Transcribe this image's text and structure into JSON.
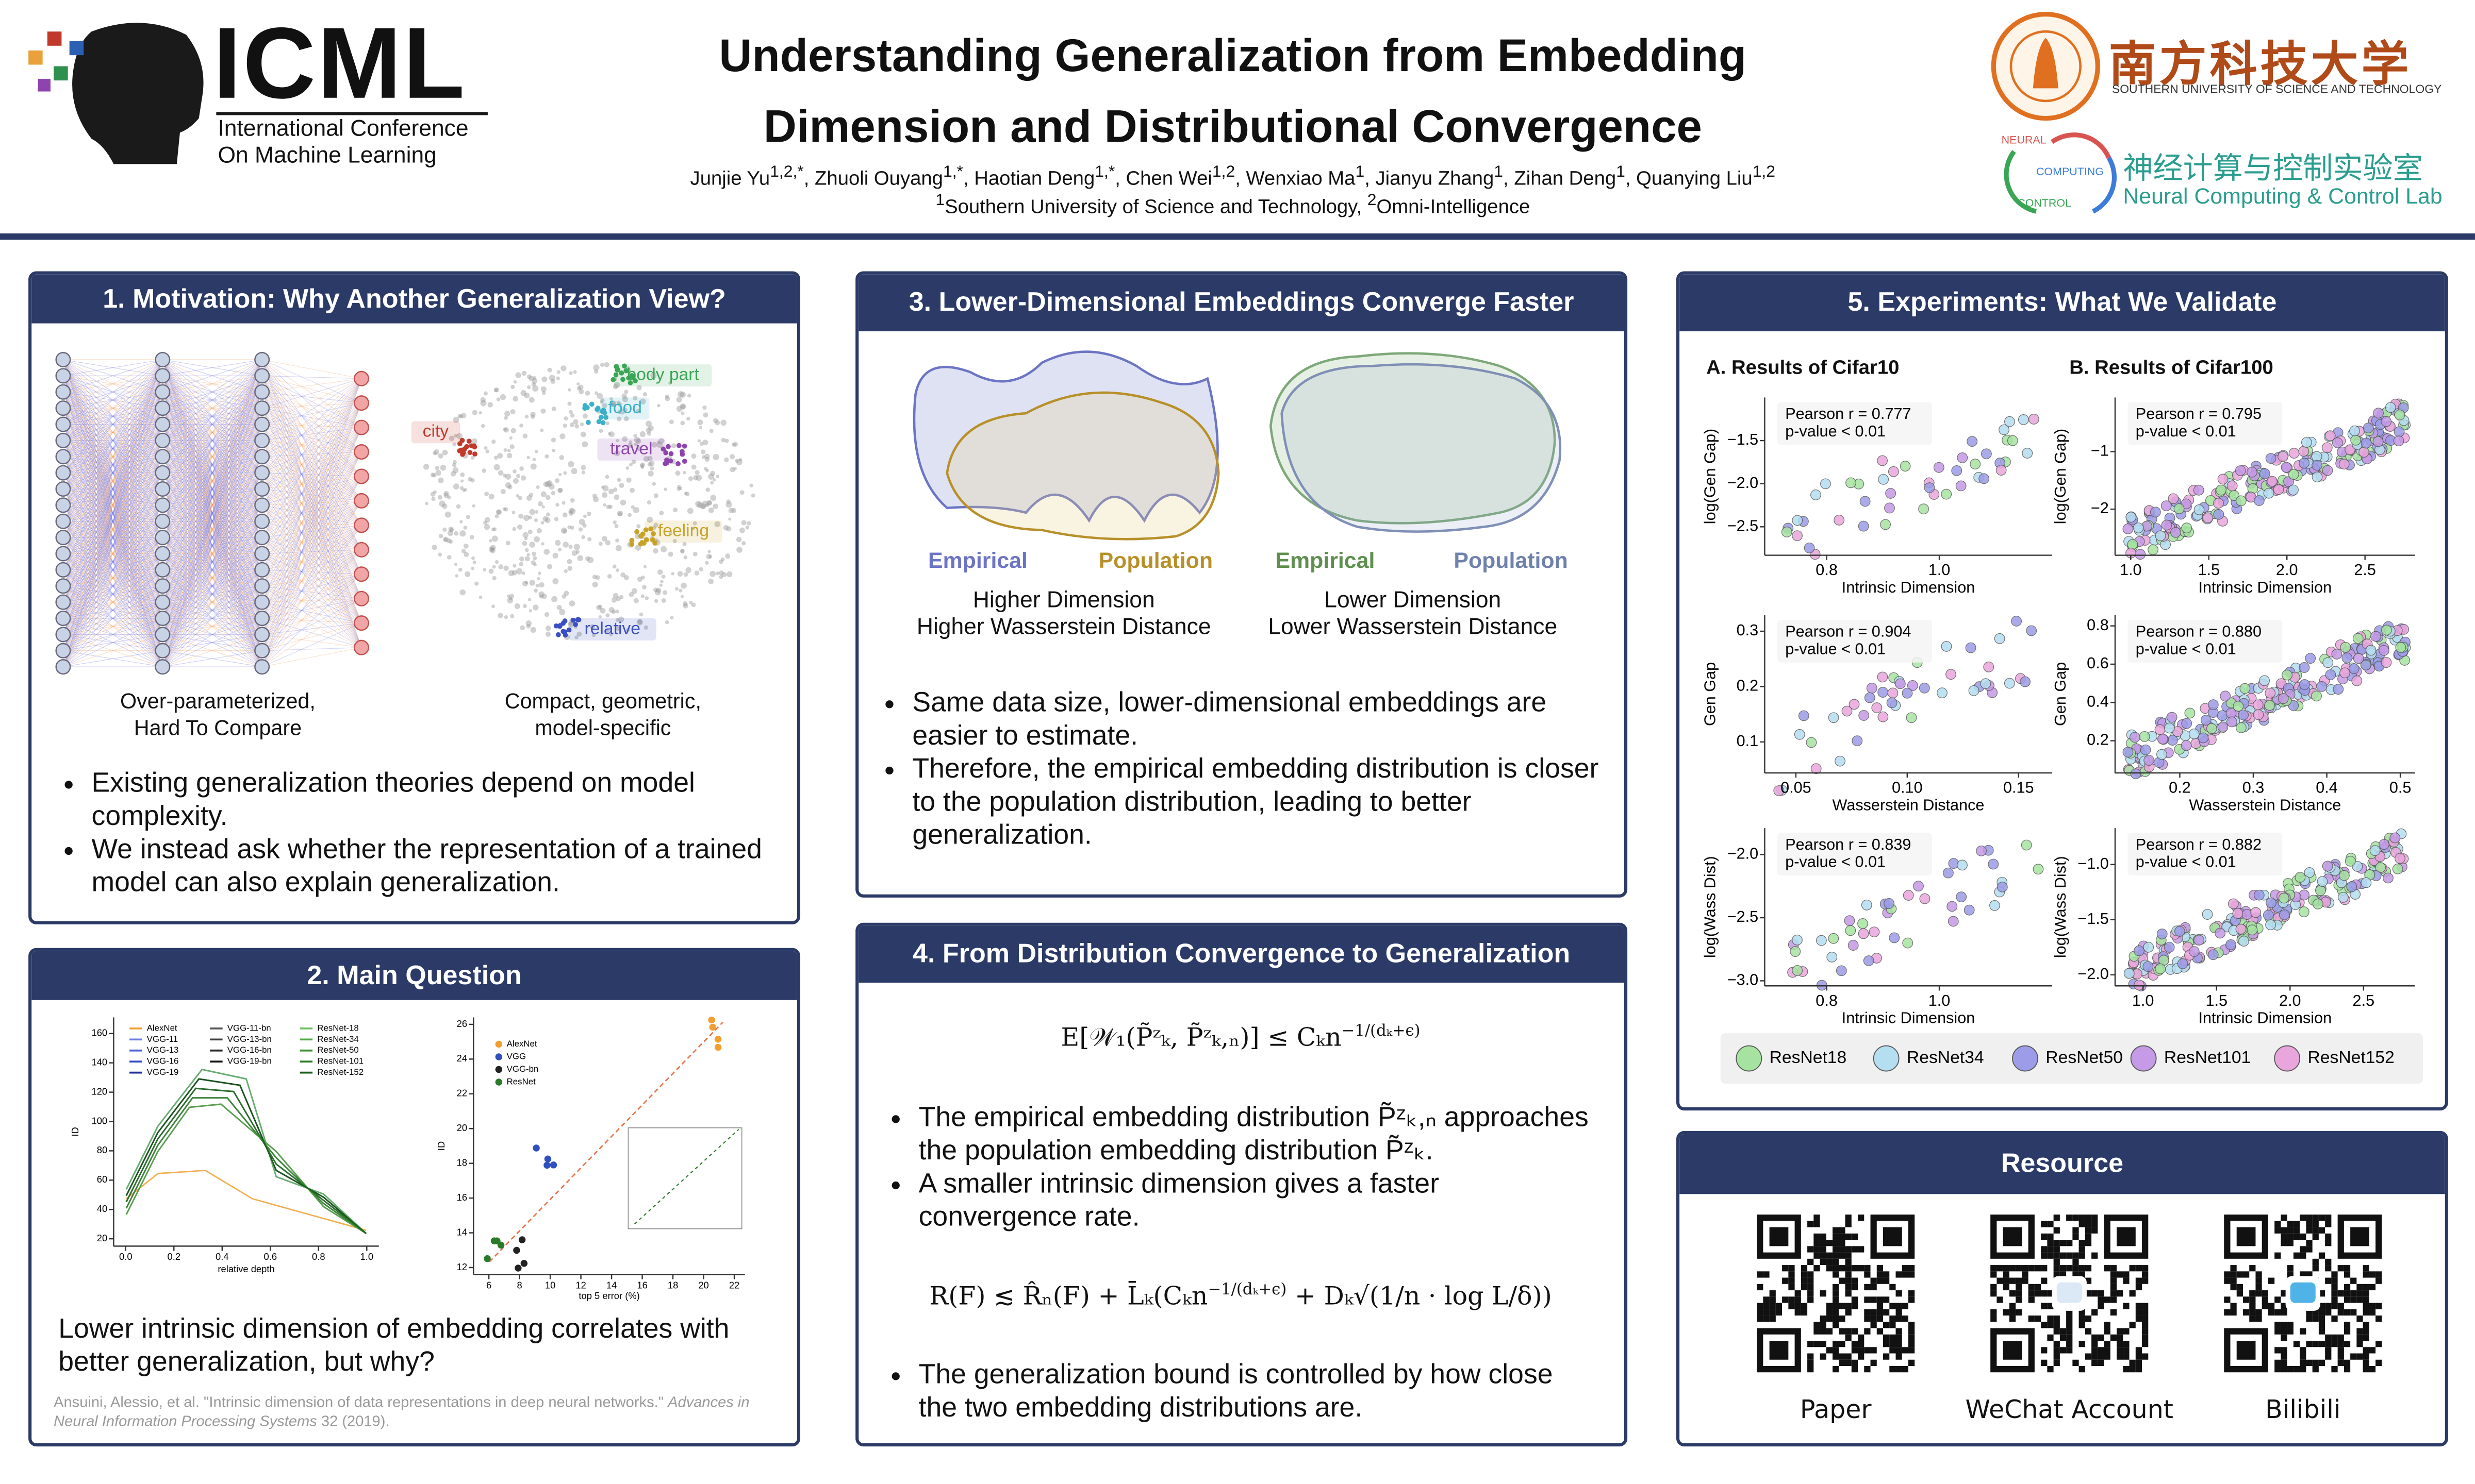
{
  "header": {
    "conference": {
      "acronym": "ICML",
      "line1": "International Conference",
      "line2": "On Machine Learning"
    },
    "title": [
      "Understanding Generalization from Embedding",
      "Dimension and Distributional Convergence"
    ],
    "separator": ", ",
    "authors": [
      {
        "name": "Junjie Yu",
        "sup": "1,2,*"
      },
      {
        "name": "Zhuoli Ouyang",
        "sup": "1,*"
      },
      {
        "name": "Haotian Deng",
        "sup": "1,*"
      },
      {
        "name": "Chen Wei",
        "sup": "1,2"
      },
      {
        "name": "Wenxiao Ma",
        "sup": "1"
      },
      {
        "name": "Jianyu Zhang",
        "sup": "1"
      },
      {
        "name": "Zihan Deng",
        "sup": "1"
      },
      {
        "name": "Quanying Liu",
        "sup": "1,2"
      }
    ],
    "affiliations": [
      {
        "sup": "1",
        "name": "Southern University of Science and Technology"
      },
      {
        "sup": "2",
        "name": "Omni-Intelligence"
      }
    ],
    "university": {
      "chinese": "南方科技大学",
      "english": "SOUTHERN UNIVERSITY OF SCIENCE AND TECHNOLOGY"
    },
    "lab": {
      "logo_words": [
        "NEURAL",
        "COMPUTING",
        "CONTROL"
      ],
      "chinese": "神经计算与控制实验室",
      "english": "Neural Computing & Control Lab"
    }
  },
  "motivation": {
    "title": "1. Motivation: Why Another Generalization View?",
    "network_caption": [
      "Over-parameterized,",
      "Hard To Compare"
    ],
    "embedding_caption": [
      "Compact, geometric,",
      "model-specific"
    ],
    "clusters": [
      "body part",
      "food",
      "city",
      "travel",
      "feeling",
      "relative"
    ],
    "bullets": [
      "Existing generalization theories depend on model complexity.",
      "We instead ask whether the representation of a trained model can also explain generalization."
    ]
  },
  "main_question": {
    "title": "2. Main Question",
    "id_chart": {
      "y_label": "ID",
      "x_label": "relative depth",
      "xlim": [
        -0.05,
        1.05
      ],
      "ylim": [
        15,
        171
      ],
      "xticks": [
        {
          "value": 0,
          "label": "0.0"
        },
        0.2,
        0.4,
        0.6,
        0.8,
        {
          "value": 1,
          "label": "1.0"
        }
      ],
      "yticks": [
        20,
        40,
        60,
        80,
        100,
        120,
        140,
        160
      ],
      "legend": [
        {
          "name": "AlexNet",
          "color": "#f0a030"
        },
        {
          "name": "VGG-11",
          "color": "#6a7ee6"
        },
        {
          "name": "VGG-13",
          "color": "#4d62d8"
        },
        {
          "name": "VGG-16",
          "color": "#3049c4"
        },
        {
          "name": "VGG-19",
          "color": "#1c2f9c"
        },
        {
          "name": "VGG-11-bn",
          "color": "#555555"
        },
        {
          "name": "VGG-13-bn",
          "color": "#3d3d3d"
        },
        {
          "name": "VGG-16-bn",
          "color": "#262626"
        },
        {
          "name": "VGG-19-bn",
          "color": "#111111"
        },
        {
          "name": "ResNet-18",
          "color": "#6fbf5f"
        },
        {
          "name": "ResNet-34",
          "color": "#52a845"
        },
        {
          "name": "ResNet-50",
          "color": "#3a9030"
        },
        {
          "name": "ResNet-101",
          "color": "#2a7a24"
        },
        {
          "name": "ResNet-152",
          "color": "#1a5e18"
        }
      ]
    },
    "error_chart": {
      "y_label": "ID",
      "x_label": "top 5 error (%)",
      "xlim": [
        5,
        22.7
      ],
      "ylim": [
        11.6,
        26.4
      ],
      "xticks": [
        6,
        8,
        10,
        12,
        14,
        16,
        18,
        20,
        22
      ],
      "yticks": [
        12,
        14,
        16,
        18,
        20,
        22,
        24,
        26
      ],
      "legend": [
        {
          "name": "AlexNet",
          "color": "#f0a030"
        },
        {
          "name": "VGG",
          "color": "#3050c0"
        },
        {
          "name": "VGG-bn",
          "color": "#222222"
        },
        {
          "name": "ResNet",
          "color": "#2a7a2a"
        }
      ]
    },
    "caption": "Lower intrinsic dimension of embedding correlates with better generalization, but why?",
    "citation": {
      "authors": "Ansuini, Alessio, et al. \"Intrinsic dimension of data representations in deep neural networks.\"",
      "venue": "Advances in Neural Information Processing Systems",
      "details": "32 (2019)."
    }
  },
  "convergence": {
    "title": "3. Lower-Dimensional Embeddings Converge Faster",
    "high": {
      "labels": [
        "Empirical",
        "Population"
      ],
      "caption": [
        "Higher Dimension",
        "Higher Wasserstein Distance"
      ]
    },
    "low": {
      "labels": [
        "Empirical",
        "Population"
      ],
      "caption": [
        "Lower Dimension",
        "Lower Wasserstein Distance"
      ]
    },
    "bullets": [
      "Same data size, lower-dimensional embeddings are easier to estimate.",
      "Therefore, the empirical embedding distribution is closer to the population distribution, leading to better generalization."
    ]
  },
  "generalization": {
    "title": "4. From Distribution Convergence to Generalization",
    "rate_bound": [
      {
        "text": "E[𝒲₁(P̃ᶻₖ, P̃ᶻₖ,ₙ)] ≤ Cₖn"
      },
      {
        "text": "−1/(dₖ+ϵ)",
        "sup": true
      }
    ],
    "bullets_top": [
      "The empirical embedding distribution P̃ᶻₖ,ₙ approaches the population embedding distribution P̃ᶻₖ.",
      "A smaller intrinsic dimension gives a faster convergence rate."
    ],
    "risk_bound": [
      {
        "text": "R(F) ≲ R̂ₙ(F) + L̄ₖ(Cₖn"
      },
      {
        "text": "−1/(dₖ+ϵ)",
        "sup": true
      },
      {
        "text": " + Dₖ√(1/n · log L/δ))"
      }
    ],
    "bullets_bottom": [
      "The generalization bound is controlled by how close the two embedding distributions are."
    ]
  },
  "experiments": {
    "title": "5. Experiments: What We Validate",
    "cifar10": {
      "title": "A. Results of Cifar10",
      "plots": [
        {
          "pearson": "Pearson r = 0.777",
          "p_value": "p-value < 0.01",
          "x_label": "Intrinsic Dimension",
          "y_label": "log(Gen Gap)",
          "xlim": [
            0.69,
            1.2
          ],
          "ylim": [
            -2.83,
            -1.0
          ],
          "xticks": [
            0.8,
            {
              "value": 1,
              "label": "1.0"
            }
          ],
          "yticks": [
            {
              "value": -2.5,
              "label": "−2.5"
            },
            {
              "value": -2,
              "label": "−2.0"
            },
            {
              "value": -1.5,
              "label": "−1.5"
            }
          ]
        },
        {
          "pearson": "Pearson r = 0.904",
          "p_value": "p-value < 0.01",
          "x_label": "Wasserstein Distance",
          "y_label": "Gen Gap",
          "xlim": [
            0.036,
            0.165
          ],
          "ylim": [
            0.044,
            0.329
          ],
          "xticks": [
            0.05,
            {
              "value": 0.1,
              "label": "0.10"
            },
            0.15
          ],
          "yticks": [
            0.1,
            0.2,
            0.3
          ]
        },
        {
          "pearson": "Pearson r = 0.839",
          "p_value": "p-value < 0.01",
          "x_label": "Intrinsic Dimension",
          "y_label": "log(Wass Dist)",
          "xlim": [
            0.69,
            1.2
          ],
          "ylim": [
            -3.04,
            -1.79
          ],
          "xticks": [
            0.8,
            {
              "value": 1,
              "label": "1.0"
            }
          ],
          "yticks": [
            {
              "value": -3,
              "label": "−3.0"
            },
            {
              "value": -2.5,
              "label": "−2.5"
            },
            {
              "value": -2,
              "label": "−2.0"
            }
          ]
        }
      ]
    },
    "cifar100": {
      "title": "B. Results of Cifar100",
      "plots": [
        {
          "pearson": "Pearson r = 0.795",
          "p_value": "p-value < 0.01",
          "x_label": "Intrinsic Dimension",
          "y_label": "log(Gen Gap)",
          "xlim": [
            0.9,
            2.82
          ],
          "ylim": [
            -2.8,
            -0.06
          ],
          "xticks": [
            {
              "value": 1,
              "label": "1.0"
            },
            1.5,
            {
              "value": 2,
              "label": "2.0"
            },
            2.5
          ],
          "yticks": [
            {
              "value": -2,
              "label": "−2"
            },
            {
              "value": -1,
              "label": "−1"
            }
          ]
        },
        {
          "pearson": "Pearson r = 0.880",
          "p_value": "p-value < 0.01",
          "x_label": "Wasserstein Distance",
          "y_label": "Gen Gap",
          "xlim": [
            0.112,
            0.52
          ],
          "ylim": [
            0.032,
            0.856
          ],
          "xticks": [
            0.2,
            0.3,
            0.4,
            0.5
          ],
          "yticks": [
            0.2,
            0.4,
            0.6,
            0.8
          ]
        },
        {
          "pearson": "Pearson r = 0.882",
          "p_value": "p-value < 0.01",
          "x_label": "Intrinsic Dimension",
          "y_label": "log(Wass Dist)",
          "xlim": [
            0.81,
            2.85
          ],
          "ylim": [
            -2.1,
            -0.67
          ],
          "xticks": [
            {
              "value": 1,
              "label": "1.0"
            },
            1.5,
            {
              "value": 2,
              "label": "2.0"
            },
            2.5
          ],
          "yticks": [
            {
              "value": -2,
              "label": "−2.0"
            },
            {
              "value": -1.5,
              "label": "−1.5"
            },
            {
              "value": -1,
              "label": "−1.0"
            }
          ]
        }
      ]
    },
    "legend": [
      {
        "name": "ResNet18",
        "color": "#a6e3a1"
      },
      {
        "name": "ResNet34",
        "color": "#b5def0"
      },
      {
        "name": "ResNet50",
        "color": "#9c9ce8"
      },
      {
        "name": "ResNet101",
        "color": "#c59ae6"
      },
      {
        "name": "ResNet152",
        "color": "#e9a6dc"
      }
    ]
  },
  "resource": {
    "title": "Resource",
    "items": [
      "Paper",
      "WeChat Account",
      "Bilibili"
    ]
  }
}
